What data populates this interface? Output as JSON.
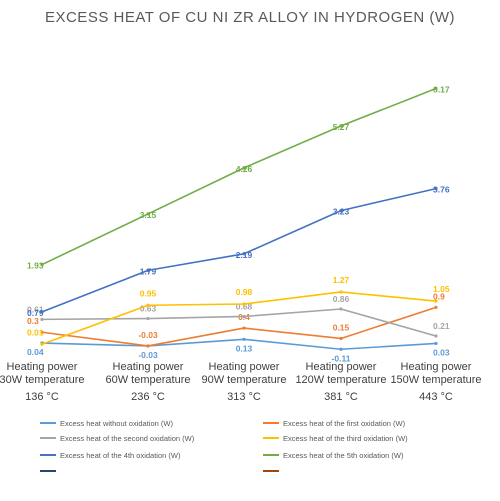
{
  "chart_data": {
    "type": "line",
    "title": "EXCESS HEAT OF CU NI ZR ALLOY IN HYDROGEN (W)",
    "categories": [
      [
        "Heating power",
        "30W temperature",
        "136 °C"
      ],
      [
        "Heating power",
        "60W temperature",
        "236 °C"
      ],
      [
        "Heating power",
        "90W temperature",
        "313 °C"
      ],
      [
        "Heating power",
        "120W temperature",
        "381 °C"
      ],
      [
        "Heating power",
        "150W temperature",
        "443 °C"
      ]
    ],
    "series": [
      {
        "name": "Excess heat without oxidation (W)",
        "color": "#5b9bd5",
        "values": [
          0.04,
          -0.03,
          0.13,
          -0.11,
          0.03
        ],
        "labels": [
          "0.04",
          "-0.03",
          "0.13",
          "-0.11",
          "0.03"
        ]
      },
      {
        "name": "Excess heat of the first oxidation (W)",
        "color": "#ed7d31",
        "values": [
          0.3,
          -0.03,
          0.4,
          0.15,
          0.9
        ],
        "labels": [
          "0.3",
          "-0.03",
          "0.4",
          "0.15",
          "0.9"
        ]
      },
      {
        "name": "Excess heat of the second oxidation (W)",
        "color": "#a5a5a5",
        "values": [
          0.61,
          0.63,
          0.68,
          0.86,
          0.21
        ],
        "labels": [
          "0.61",
          "0.63",
          "0.68",
          "0.86",
          "0.21"
        ]
      },
      {
        "name": "Excess heat of the third oxidation (W)",
        "color": "#ffc000",
        "values": [
          0.01,
          0.95,
          0.98,
          1.27,
          1.05
        ],
        "labels": [
          "0.01",
          "0.95",
          "0.98",
          "1.27",
          "1.05"
        ]
      },
      {
        "name": "Excess heat of the 4th oxidation (W)",
        "color": "#4472c4",
        "values": [
          0.79,
          1.79,
          2.19,
          3.23,
          3.76
        ],
        "labels": [
          "0.79",
          "1.79",
          "2.19",
          "3.23",
          "3.76"
        ]
      },
      {
        "name": "Excess heat of the 5th oxidation (W)",
        "color": "#70ad47",
        "values": [
          1.93,
          3.15,
          4.26,
          5.27,
          6.17
        ],
        "labels": [
          "1.93",
          "3.15",
          "4.26",
          "5.27",
          "6.17"
        ]
      }
    ],
    "extra_legend_swatches": [
      "#264478",
      "#9e480e"
    ],
    "ylim": [
      -0.2,
      6.4
    ],
    "grid": false,
    "legend_position": "bottom"
  }
}
